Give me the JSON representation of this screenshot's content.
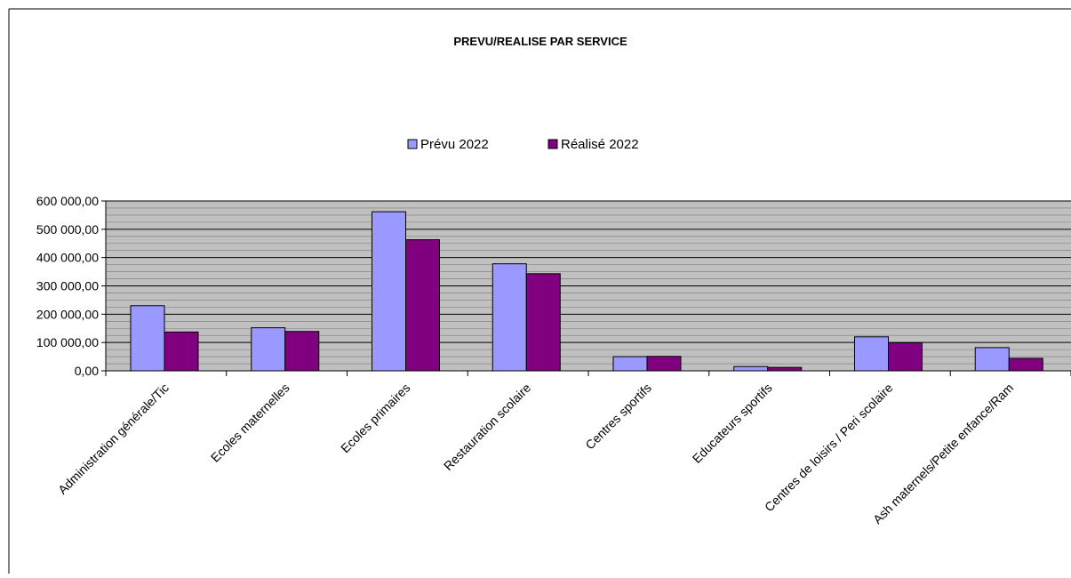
{
  "chart_data": {
    "type": "bar",
    "title": "PREVU/REALISE PAR SERVICE",
    "xlabel": "",
    "ylabel": "",
    "categories": [
      "Administration générale/Tic",
      "Ecoles maternelles",
      "Ecoles primaires",
      "Restauration scolaire",
      "Centres sportifs",
      "Educateurs sportifs",
      "Centres de loisirs / Peri scolaire",
      "Ash maternels/Petite enfance/Ram"
    ],
    "series": [
      {
        "name": "Prévu 2022",
        "color": "#9999ff",
        "values": [
          230000,
          152000,
          562000,
          378000,
          50000,
          15000,
          120000,
          82000
        ]
      },
      {
        "name": "Réalisé 2022",
        "color": "#800080",
        "values": [
          137000,
          139000,
          463000,
          343000,
          51000,
          12000,
          99000,
          44000
        ]
      }
    ],
    "ylim": [
      0,
      600000
    ],
    "yticks": [
      0,
      100000,
      200000,
      300000,
      400000,
      500000,
      600000
    ],
    "ytick_labels": [
      "0,00",
      "100 000,00",
      "200 000,00",
      "300 000,00",
      "400 000,00",
      "500 000,00",
      "600 000,00"
    ],
    "legend_position": "top-center",
    "grid": true,
    "plot_background": "#c0c0c0"
  }
}
